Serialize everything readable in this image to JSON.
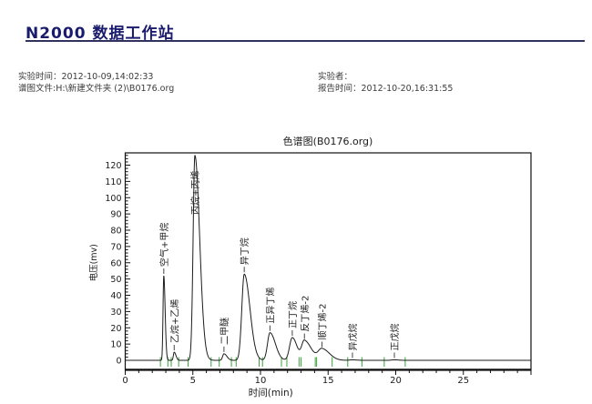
{
  "header": {
    "app_title": "N2000 数据工作站"
  },
  "info": {
    "exp_time_label": "实验时间：",
    "exp_time_value": "2012-10-09,14:02:33",
    "file_label": "谱图文件:",
    "file_value": "H:\\新建文件夹 (2)\\B0176.org",
    "operator_label": "实验者：",
    "operator_value": "",
    "report_time_label": "报告时间：",
    "report_time_value": "2012-10-20,16:31:55"
  },
  "chart_data": {
    "type": "line",
    "title": "色谱图(B0176.org)",
    "xlabel": "时间(min)",
    "ylabel": "电压(mv)",
    "xlim": [
      0,
      30
    ],
    "ylim": [
      0,
      127
    ],
    "x_major_ticks": [
      0,
      5,
      10,
      15,
      20,
      25
    ],
    "x_minor_step": 1,
    "y_major_step": 10,
    "y_minor_step": 2,
    "y_label_max": 120,
    "grid": false,
    "curve_color": "#1c1c1c",
    "marker_color": "#3aa03a",
    "axis_color": "#111111",
    "peaks": [
      {
        "name": "空气+甲烷",
        "time": 2.85,
        "height": 52,
        "sigma_left": 0.055,
        "sigma_right": 0.1
      },
      {
        "name": "乙烷+乙烯",
        "time": 3.62,
        "height": 5,
        "sigma_left": 0.06,
        "sigma_right": 0.13
      },
      {
        "name": "丙烷+丙烯",
        "time": 5.15,
        "height": 126,
        "sigma_left": 0.13,
        "sigma_right": 0.35
      },
      {
        "name": "二甲醚",
        "time": 7.3,
        "height": 4,
        "sigma_left": 0.1,
        "sigma_right": 0.22
      },
      {
        "name": "异丁烷",
        "time": 8.8,
        "height": 53,
        "sigma_left": 0.18,
        "sigma_right": 0.42
      },
      {
        "name": "正异丁烯",
        "time": 10.7,
        "height": 17,
        "sigma_left": 0.18,
        "sigma_right": 0.4
      },
      {
        "name": "正丁烷",
        "time": 12.35,
        "height": 14,
        "sigma_left": 0.2,
        "sigma_right": 0.35
      },
      {
        "name": "反丁烯-2",
        "time": 13.25,
        "height": 12,
        "sigma_left": 0.2,
        "sigma_right": 0.5
      },
      {
        "name": "顺丁烯-2",
        "time": 14.55,
        "height": 7,
        "sigma_left": 0.28,
        "sigma_right": 0.55
      },
      {
        "name": "异戊烷",
        "time": 16.8,
        "height": 0.3,
        "sigma_left": 0.2,
        "sigma_right": 0.3
      },
      {
        "name": "正戊烷",
        "time": 19.9,
        "height": 0.3,
        "sigma_left": 0.2,
        "sigma_right": 0.3
      }
    ],
    "boundary_markers": [
      2.6,
      3.15,
      3.4,
      3.95,
      4.65,
      6.35,
      6.95,
      7.85,
      8.2,
      9.9,
      10.15,
      11.55,
      11.95,
      12.85,
      13.0,
      14.05,
      14.15,
      15.3,
      16.45,
      17.5,
      19.15,
      20.7
    ]
  }
}
